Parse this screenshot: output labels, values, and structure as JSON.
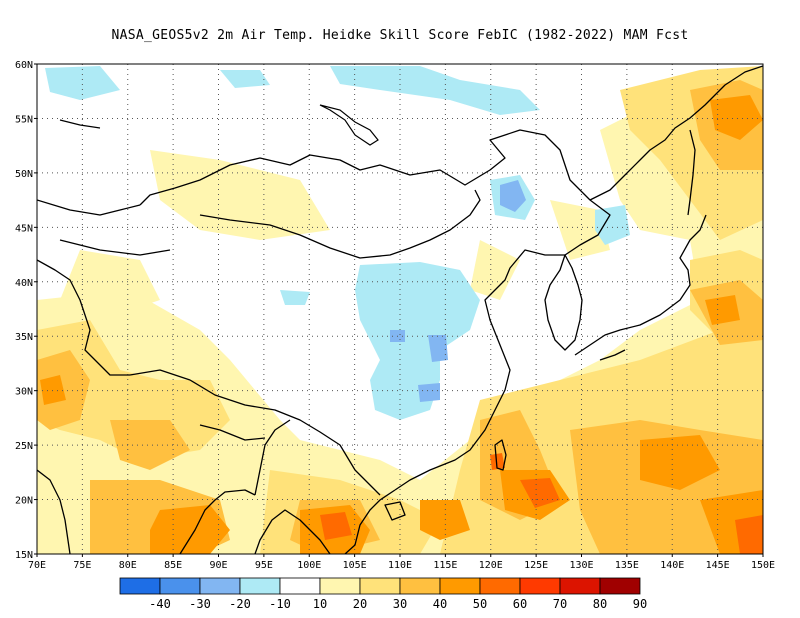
{
  "title": "NASA_GEOS5v2  2m Air Temp. Heidke Skill Score FebIC (1982-2022) MAM Fcst",
  "lat_labels": [
    "60N",
    "55N",
    "50N",
    "45N",
    "40N",
    "35N",
    "30N",
    "25N",
    "20N",
    "15N"
  ],
  "lon_labels": [
    "70E",
    "75E",
    "80E",
    "85E",
    "90E",
    "95E",
    "100E",
    "105E",
    "110E",
    "115E",
    "120E",
    "125E",
    "130E",
    "135E",
    "140E",
    "145E",
    "150E"
  ],
  "colorbar": {
    "colors": [
      "#1e6ee6",
      "#4a91ec",
      "#82b6f2",
      "#aeeaf5",
      "#ffffff",
      "#fff6b0",
      "#ffe27a",
      "#ffc040",
      "#ff9a00",
      "#ff6a00",
      "#ff3a00",
      "#dc1400",
      "#a00000"
    ],
    "labels": [
      "-40",
      "-30",
      "-20",
      "-10",
      "10",
      "20",
      "30",
      "40",
      "50",
      "60",
      "70",
      "80",
      "90"
    ]
  },
  "field_colors": {
    "light_yellow": "#fff6b0",
    "yellow": "#ffe27a",
    "light_orange": "#ffc040",
    "orange": "#ff9a00",
    "red_orange": "#ff6a00",
    "cyan": "#aeeaf5",
    "light_blue": "#82b6f2",
    "blue": "#4a91ec"
  }
}
